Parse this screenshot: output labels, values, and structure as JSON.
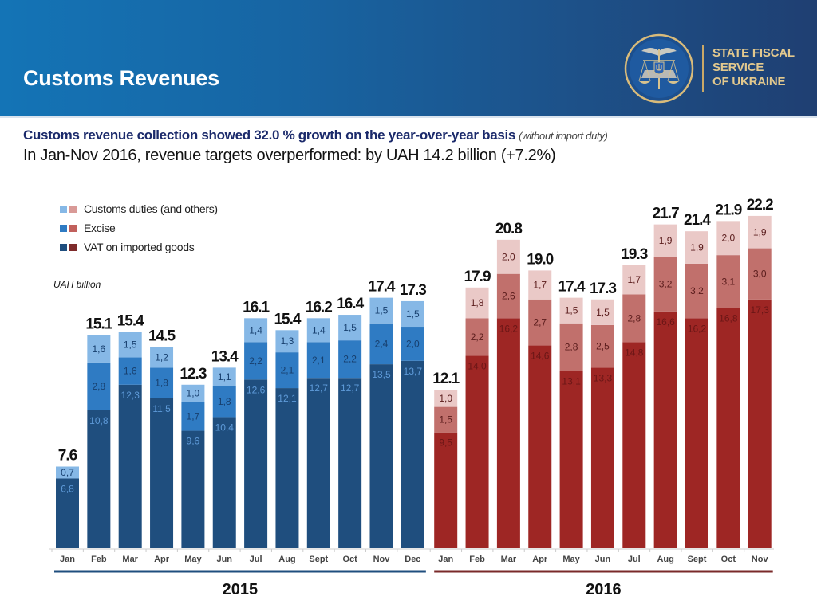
{
  "header": {
    "title": "Customs Revenues",
    "logo_text_lines": [
      "STATE FISCAL",
      "SERVICE",
      "OF UKRAINE"
    ],
    "logo_icon": "state-fiscal-service-emblem-icon"
  },
  "subtitle": {
    "main": "Customs revenue collection showed 32.0 % growth on the year-over-year basis",
    "note": "(without import duty)",
    "line2": "In Jan-Nov 2016, revenue targets overperformed: by UAH 14.2 billion (+7.2%)"
  },
  "colors": {
    "header_start": "#1474b6",
    "header_end": "#1f3f72",
    "blue_vat": "#1f4e7e",
    "blue_excise": "#2f7bc3",
    "blue_customs": "#86b8e6",
    "red_vat": "#9e2624",
    "red_excise": "#c1706c",
    "red_customs": "#eac9c7",
    "line_2015": "#1f4e7e",
    "line_2016": "#7a2a2a"
  },
  "chart_data": {
    "type": "bar",
    "stacked": true,
    "title": "",
    "ylabel": "UAH billion",
    "xlabel": "",
    "legend": [
      "Customs duties (and others)",
      "Excise",
      "VAT on imported goods"
    ],
    "legend_position": "top-left",
    "grid": false,
    "groups": [
      {
        "year": "2015",
        "categories": [
          "Jan",
          "Feb",
          "Mar",
          "Apr",
          "May",
          "Jun",
          "Jul",
          "Aug",
          "Sept",
          "Oct",
          "Nov",
          "Dec"
        ],
        "totals": [
          "7.6",
          "15.1",
          "15.4",
          "14.5",
          "12.3",
          "13.4",
          "16.1",
          "15.4",
          "16.2",
          "16.4",
          "17.4",
          "17.3"
        ],
        "series": [
          {
            "name": "VAT on imported goods",
            "values": [
              6.8,
              10.8,
              12.3,
              11.5,
              9.6,
              10.4,
              12.6,
              12.1,
              12.7,
              12.7,
              13.5,
              13.7
            ],
            "labels": [
              "6,8",
              "10,8",
              "12,3",
              "11,5",
              "9,6",
              "10,4",
              "12,6",
              "12,1",
              "12,7",
              "12,7",
              "13,5",
              "13,7"
            ]
          },
          {
            "name": "Excise",
            "values": [
              null,
              2.8,
              1.6,
              1.8,
              1.7,
              1.8,
              2.2,
              2.1,
              2.1,
              2.2,
              2.4,
              2.0
            ],
            "labels": [
              "",
              "2,8",
              "1,6",
              "1,8",
              "1,7",
              "1,8",
              "2,2",
              "2,1",
              "2,1",
              "2,2",
              "2,4",
              "2,0"
            ]
          },
          {
            "name": "Customs duties (and others)",
            "values": [
              0.7,
              1.6,
              1.5,
              1.2,
              1.0,
              1.1,
              1.4,
              1.3,
              1.4,
              1.5,
              1.5,
              1.5
            ],
            "labels": [
              "0,7",
              "1,6",
              "1,5",
              "1,2",
              "1,0",
              "1,1",
              "1,4",
              "1,3",
              "1,4",
              "1,5",
              "1,5",
              "1,5"
            ]
          }
        ]
      },
      {
        "year": "2016",
        "categories": [
          "Jan",
          "Feb",
          "Mar",
          "Apr",
          "May",
          "Jun",
          "Jul",
          "Aug",
          "Sept",
          "Oct",
          "Nov"
        ],
        "totals": [
          "12.1",
          "17.9",
          "20.8",
          "19.0",
          "17.4",
          "17.3",
          "19.3",
          "21.7",
          "21.4",
          "21.9",
          "22.2"
        ],
        "series": [
          {
            "name": "VAT on imported goods",
            "values": [
              9.5,
              14.0,
              16.2,
              14.6,
              13.1,
              13.3,
              14.8,
              16.6,
              16.2,
              16.8,
              17.3
            ],
            "labels": [
              "9,5",
              "14,0",
              "16,2",
              "14,6",
              "13,1",
              "13,3",
              "14,8",
              "16,6",
              "16,2",
              "16,8",
              "17,3"
            ]
          },
          {
            "name": "Excise",
            "values": [
              1.5,
              2.2,
              2.6,
              2.7,
              2.8,
              2.5,
              2.8,
              3.2,
              3.2,
              3.1,
              3.0
            ],
            "labels": [
              "1,5",
              "2,2",
              "2,6",
              "2,7",
              "2,8",
              "2,5",
              "2,8",
              "3,2",
              "3,2",
              "3,1",
              "3,0"
            ]
          },
          {
            "name": "Customs duties (and others)",
            "values": [
              1.0,
              1.8,
              2.0,
              1.7,
              1.5,
              1.5,
              1.7,
              1.9,
              1.9,
              2.0,
              1.9
            ],
            "labels": [
              "1,0",
              "1,8",
              "2,0",
              "1,7",
              "1,5",
              "1,5",
              "1,7",
              "1,9",
              "1,9",
              "2,0",
              "1,9"
            ]
          }
        ]
      }
    ]
  }
}
